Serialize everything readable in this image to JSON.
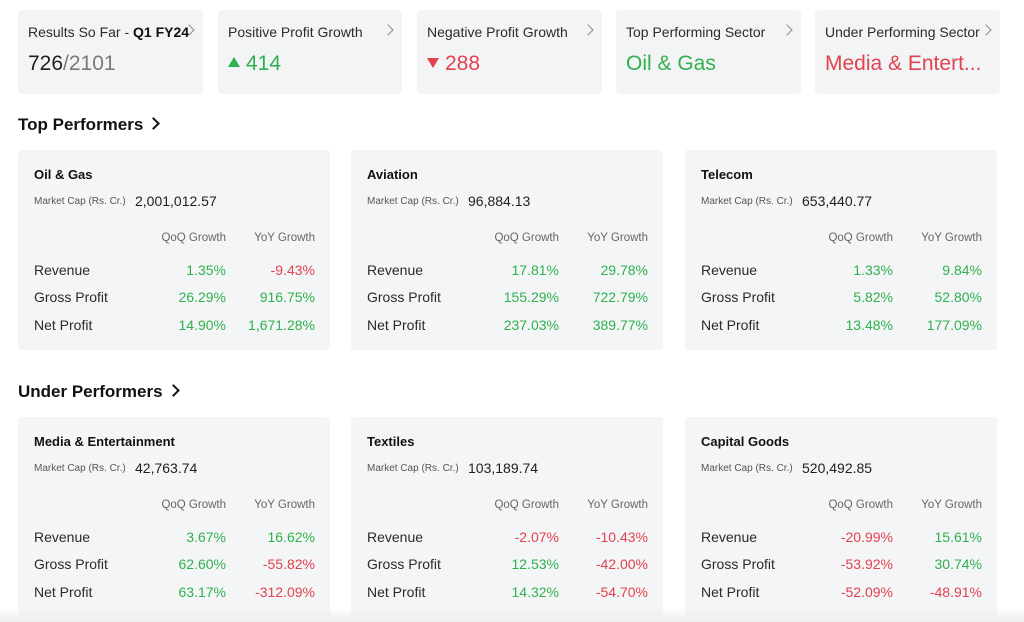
{
  "summary": [
    {
      "title": "Results So Far - ",
      "title_bold": "Q1 FY24",
      "value_main": "726",
      "value_suffix": "/2101",
      "trend": "none",
      "color": "#1f1f1f"
    },
    {
      "title": "Positive Profit Growth",
      "title_bold": "",
      "value_main": "414",
      "value_suffix": "",
      "trend": "up",
      "color": "#2fb14e"
    },
    {
      "title": "Negative Profit Growth",
      "title_bold": "",
      "value_main": "288",
      "value_suffix": "",
      "trend": "down",
      "color": "#e2424e"
    },
    {
      "title": "Top Performing Sector",
      "title_bold": "",
      "value_main": "Oil & Gas",
      "value_suffix": "",
      "trend": "none",
      "color": "#2fb14e"
    },
    {
      "title": "Under Performing Sector",
      "title_bold": "",
      "value_main": "Media & Entert...",
      "value_suffix": "",
      "trend": "none",
      "color": "#e2424e"
    }
  ],
  "top_performers": {
    "title": "Top Performers",
    "cards": [
      {
        "name": "Oil & Gas",
        "mcap_label": "Market Cap (Rs. Cr.)",
        "mcap_value": "2,001,012.57",
        "col1": "QoQ Growth",
        "col2": "YoY Growth",
        "rows": [
          {
            "label": "Revenue",
            "qoq": "1.35%",
            "yoy": "-9.43%"
          },
          {
            "label": "Gross Profit",
            "qoq": "26.29%",
            "yoy": "916.75%"
          },
          {
            "label": "Net Profit",
            "qoq": "14.90%",
            "yoy": "1,671.28%"
          }
        ]
      },
      {
        "name": "Aviation",
        "mcap_label": "Market Cap (Rs. Cr.)",
        "mcap_value": "96,884.13",
        "col1": "QoQ Growth",
        "col2": "YoY Growth",
        "rows": [
          {
            "label": "Revenue",
            "qoq": "17.81%",
            "yoy": "29.78%"
          },
          {
            "label": "Gross Profit",
            "qoq": "155.29%",
            "yoy": "722.79%"
          },
          {
            "label": "Net Profit",
            "qoq": "237.03%",
            "yoy": "389.77%"
          }
        ]
      },
      {
        "name": "Telecom",
        "mcap_label": "Market Cap (Rs. Cr.)",
        "mcap_value": "653,440.77",
        "col1": "QoQ Growth",
        "col2": "YoY Growth",
        "rows": [
          {
            "label": "Revenue",
            "qoq": "1.33%",
            "yoy": "9.84%"
          },
          {
            "label": "Gross Profit",
            "qoq": "5.82%",
            "yoy": "52.80%"
          },
          {
            "label": "Net Profit",
            "qoq": "13.48%",
            "yoy": "177.09%"
          }
        ]
      }
    ]
  },
  "under_performers": {
    "title": "Under Performers",
    "cards": [
      {
        "name": "Media & Entertainment",
        "mcap_label": "Market Cap (Rs. Cr.)",
        "mcap_value": "42,763.74",
        "col1": "QoQ Growth",
        "col2": "YoY Growth",
        "rows": [
          {
            "label": "Revenue",
            "qoq": "3.67%",
            "yoy": "16.62%"
          },
          {
            "label": "Gross Profit",
            "qoq": "62.60%",
            "yoy": "-55.82%"
          },
          {
            "label": "Net Profit",
            "qoq": "63.17%",
            "yoy": "-312.09%"
          }
        ]
      },
      {
        "name": "Textiles",
        "mcap_label": "Market Cap (Rs. Cr.)",
        "mcap_value": "103,189.74",
        "col1": "QoQ Growth",
        "col2": "YoY Growth",
        "rows": [
          {
            "label": "Revenue",
            "qoq": "-2.07%",
            "yoy": "-10.43%"
          },
          {
            "label": "Gross Profit",
            "qoq": "12.53%",
            "yoy": "-42.00%"
          },
          {
            "label": "Net Profit",
            "qoq": "14.32%",
            "yoy": "-54.70%"
          }
        ]
      },
      {
        "name": "Capital Goods",
        "mcap_label": "Market Cap (Rs. Cr.)",
        "mcap_value": "520,492.85",
        "col1": "QoQ Growth",
        "col2": "YoY Growth",
        "rows": [
          {
            "label": "Revenue",
            "qoq": "-20.99%",
            "yoy": "15.61%"
          },
          {
            "label": "Gross Profit",
            "qoq": "-53.92%",
            "yoy": "30.74%"
          },
          {
            "label": "Net Profit",
            "qoq": "-52.09%",
            "yoy": "-48.91%"
          }
        ]
      }
    ]
  }
}
